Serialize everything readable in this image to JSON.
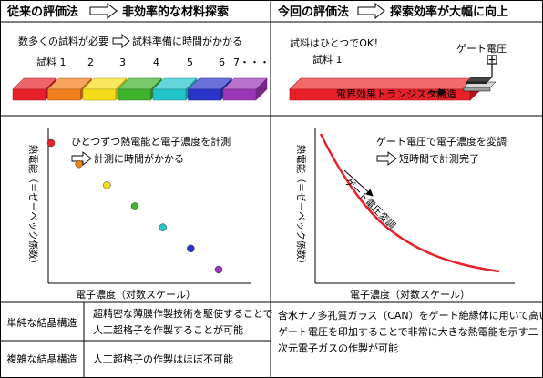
{
  "left": {
    "header": {
      "title": "従来の評価法",
      "result": "非効率的な材料探索"
    },
    "prep_note": "数多くの試料が必要",
    "prep_time": "試料準備に時間がかかる",
    "samples": [
      {
        "label": "試料 1",
        "color": "#e8202a"
      },
      {
        "label": "2",
        "color": "#f07f1c"
      },
      {
        "label": "3",
        "color": "#f5dc1a"
      },
      {
        "label": "4",
        "color": "#3fb22c"
      },
      {
        "label": "5",
        "color": "#22c3c9"
      },
      {
        "label": "6",
        "color": "#2a34c8"
      },
      {
        "label": "7・・・",
        "color": "#9b36b6"
      }
    ],
    "chart_data": {
      "type": "scatter",
      "ylabel": "熱電能（＝ゼーベック係数）",
      "xlabel": "電子濃度（対数スケール）",
      "note1": "ひとつずつ熱電能と電子濃度を計測",
      "note2": "計測に時間がかかる",
      "points": [
        {
          "x": 1,
          "y": 7,
          "color": "#e8202a"
        },
        {
          "x": 2,
          "y": 6,
          "color": "#f07f1c"
        },
        {
          "x": 3,
          "y": 5,
          "color": "#f5dc1a"
        },
        {
          "x": 4,
          "y": 4,
          "color": "#3fb22c"
        },
        {
          "x": 5,
          "y": 3,
          "color": "#22c3c9"
        },
        {
          "x": 6,
          "y": 2,
          "color": "#2a34c8"
        },
        {
          "x": 7,
          "y": 1,
          "color": "#9b36b6"
        }
      ]
    },
    "rows": [
      {
        "label": "単純な結晶構造",
        "text": "超精密な薄膜作製技術を駆使することで人工超格子を作製することが可能"
      },
      {
        "label": "複雑な結晶構造",
        "text": "人工超格子の作製はほぼ不可能"
      }
    ]
  },
  "right": {
    "header": {
      "title": "今回の評価法",
      "result": "探索効率が大幅に向上"
    },
    "one_sample": "試料はひとつでOK！",
    "sample_label": "試料 1",
    "gate_label": "ゲート電圧",
    "fet_label": "電界効果トランジスタ構造",
    "chart_data": {
      "type": "line",
      "ylabel": "熱電能（＝ゼーベック係数）",
      "xlabel": "電子濃度（対数スケール）",
      "note1": "ゲート電圧で電子濃度を変調",
      "note2": "短時間で計測完了",
      "curve_label": "ゲート電圧変調",
      "line_color": "#e8202a"
    },
    "bottom_text": "含水ナノ多孔質ガラス（CAN）をゲート絶縁体に用いて高いゲート電圧を印加することで非常に大きな熱電能を示す二次元電子ガスの作製が可能"
  }
}
